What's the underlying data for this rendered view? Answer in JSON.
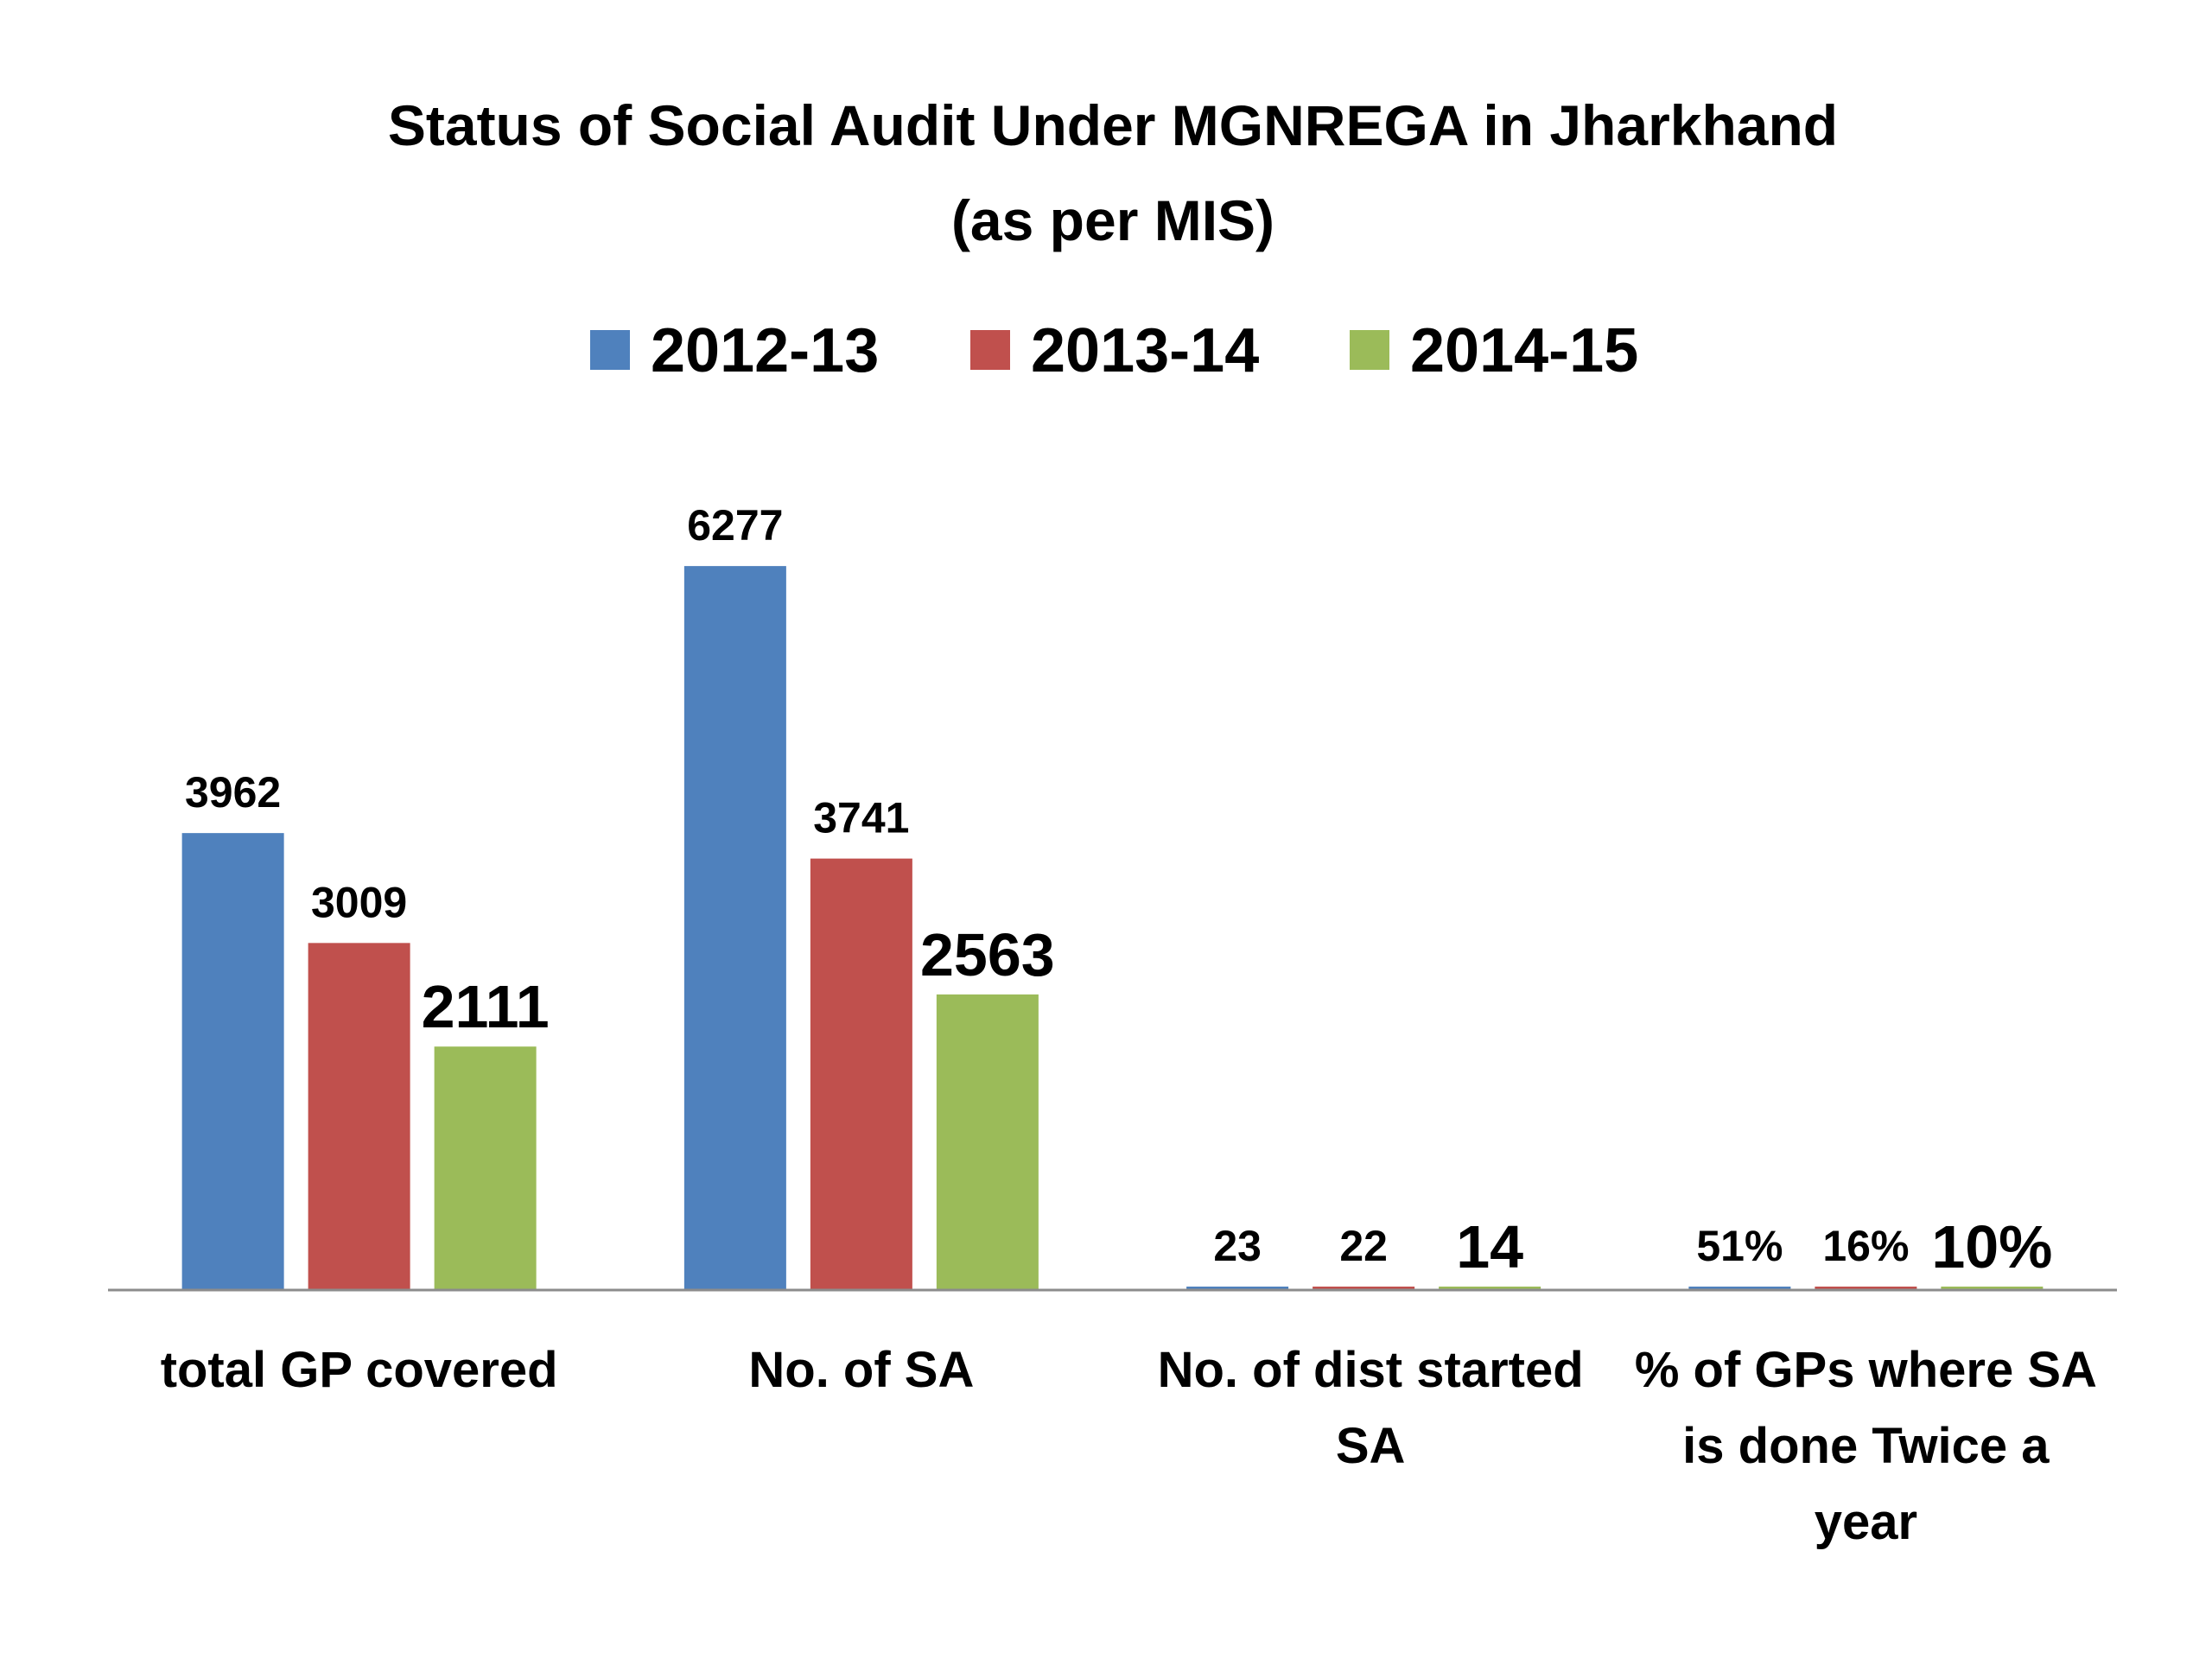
{
  "chart_data": {
    "type": "bar",
    "title": "Status of Social Audit Under MGNREGA in Jharkhand",
    "subtitle": "(as per MIS)",
    "categories": [
      [
        "total GP covered"
      ],
      [
        "No. of SA"
      ],
      [
        "No. of dist started",
        "SA"
      ],
      [
        "% of GPs where SA",
        "is done Twice a",
        "year"
      ]
    ],
    "series": [
      {
        "name": "2012-13",
        "color": "#4F81BD",
        "values": [
          3962,
          6277,
          23,
          0.51
        ],
        "labels": [
          "3962",
          "6277",
          "23",
          "51%"
        ]
      },
      {
        "name": "2013-14",
        "color": "#C0504D",
        "values": [
          3009,
          3741,
          22,
          0.16
        ],
        "labels": [
          "3009",
          "3741",
          "22",
          "16%"
        ]
      },
      {
        "name": "2014-15",
        "color": "#9BBB59",
        "values": [
          2111,
          2563,
          14,
          0.1
        ],
        "labels": [
          "2111",
          "2563",
          "14",
          "10%"
        ]
      }
    ],
    "emphasized_series": "2014-15",
    "ylim": [
      0,
      6600
    ],
    "legend_position": "top",
    "grid": false,
    "xlabel": "",
    "ylabel": ""
  }
}
